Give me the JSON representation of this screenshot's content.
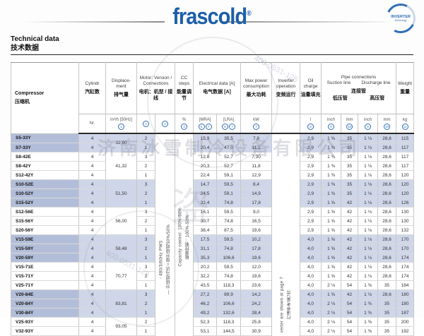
{
  "brand": {
    "logo": "frascold",
    "registered": "®",
    "badge_line1": "INVERTER",
    "badge_line2": "technology"
  },
  "title": {
    "en": "Technical data",
    "zh": "技术数据"
  },
  "header": {
    "compressor": {
      "en": "Compressor",
      "zh": "压缩机"
    },
    "cylinder": {
      "en": "Cylindr",
      "zh": "汽缸数",
      "unit": "Nr."
    },
    "displacement": {
      "en1": "Displace-",
      "en2": "ment",
      "zh": "排气量",
      "unit": "m³/h [50Hz]",
      "fn": "1"
    },
    "motor": {
      "en": "Motor: Version / Connections",
      "zh": "电机：机型 / 接线",
      "fn_a": "2",
      "fn_b": "3"
    },
    "cc": {
      "en": "CC steps",
      "zh": "能量调节",
      "unit": "%",
      "fn": "4"
    },
    "electrical": {
      "en": "Electrical data [A]",
      "zh": "电气数据 [A]",
      "mra": "[MRA]",
      "mra_fn_a": "6",
      "mra_fn_b": "7",
      "lra": "[LRA]",
      "lra_fn_a": "6",
      "lra_fn_b": "7"
    },
    "power": {
      "en": "Max power consumption",
      "zh": "最大功耗",
      "unit": "kW",
      "fn": "7"
    },
    "inverter": {
      "en": "Inverter operation",
      "zh": "变频运行"
    },
    "oil": {
      "en": "Oil charge",
      "zh": "油量填充",
      "unit": "l",
      "fn": "8"
    },
    "pipes": {
      "en": "Pipe connections",
      "zh": "连接管",
      "suction_en": "Suction line",
      "suction_zh": "低压管",
      "discharge_en": "Discharge line",
      "discharge_zh": "高压管",
      "u_s_in": "inch",
      "u_s_mm": "mm",
      "u_d_in": "inch",
      "u_d_mm": "mm",
      "fn_s_in": "9",
      "fn_s_mm": "10",
      "fn_d_in": "9",
      "fn_d_mm": "10"
    },
    "weight": {
      "en": "Weight",
      "zh": "重量",
      "unit": "kg",
      "fn": "11"
    }
  },
  "notes": {
    "motor_line1": "- 480/3/60Hz    PWS",
    "motor_line2": "— 分绕组马达＝部分绕组50%/50%",
    "cc_line1": "Capacity control: 100%-50%",
    "cc_line2": "能量控制：100%-50%",
    "inverter_line1": "verter are shown at page 7",
    "inverter_line2": "行请参考第7页"
  },
  "watermarks": {
    "company": "济南冰雪制冷设备有限公司",
    "phone": "400-0531-128",
    "char": "盗"
  },
  "groups": [
    {
      "band": "blue",
      "disp": "32,80",
      "rows": [
        {
          "name": "S5-33Y",
          "cyl": "4",
          "ver": "2",
          "mra": "15,9",
          "lra": "35,5",
          "kw": "7,8",
          "oil": "2,9",
          "s_in": "1 ⅜",
          "s_mm": "35",
          "d_in": "1 ⅛",
          "d_mm": "28,6",
          "kg": "115"
        },
        {
          "name": "S7-33Y",
          "cyl": "4",
          "ver": "1",
          "mra": "20,4",
          "lra": "47,0",
          "kw": "11,1",
          "oil": "2,9",
          "s_in": "1 ⅜",
          "s_mm": "35",
          "d_in": "1 ⅛",
          "d_mm": "28,6",
          "kg": "117"
        }
      ]
    },
    {
      "band": "white",
      "disp": "41,32",
      "rows": [
        {
          "name": "S8-42E",
          "cyl": "4",
          "ver": "3",
          "mra": "12,8",
          "lra": "52,7",
          "kw": "7,30",
          "oil": "2,9",
          "s_in": "1 ⅜",
          "s_mm": "35",
          "d_in": "1 ⅛",
          "d_mm": "28,6",
          "kg": "117"
        },
        {
          "name": "S8-42Y",
          "cyl": "4",
          "ver": "2",
          "mra": "20,3",
          "lra": "52,7",
          "kw": "11,8",
          "oil": "2,9",
          "s_in": "1 ⅜",
          "s_mm": "35",
          "d_in": "1 ⅛",
          "d_mm": "28,6",
          "kg": "117"
        },
        {
          "name": "S12-42Y",
          "cyl": "4",
          "ver": "1",
          "mra": "22,4",
          "lra": "59,1",
          "kw": "12,9",
          "oil": "2,9",
          "s_in": "1 ⅜",
          "s_mm": "35",
          "d_in": "1 ⅛",
          "d_mm": "28,6",
          "kg": "120"
        }
      ]
    },
    {
      "band": "blue",
      "disp": "51,50",
      "rows": [
        {
          "name": "S10-52E",
          "cyl": "4",
          "ver": "3",
          "mra": "14,7",
          "lra": "59,5",
          "kw": "8,4",
          "oil": "2,9",
          "s_in": "1 ⅜",
          "s_mm": "35",
          "d_in": "1 ⅛",
          "d_mm": "28,6",
          "kg": "120"
        },
        {
          "name": "S10-52Y",
          "cyl": "4",
          "ver": "2",
          "mra": "24,5",
          "lra": "59,1",
          "kw": "14,9",
          "oil": "2,9",
          "s_in": "1 ⅜",
          "s_mm": "35",
          "d_in": "1 ⅛",
          "d_mm": "28,6",
          "kg": "120"
        },
        {
          "name": "S15-52Y",
          "cyl": "4",
          "ver": "1",
          "mra": "32,4",
          "lra": "74,8",
          "kw": "17,8",
          "oil": "2,9",
          "s_in": "1 ⅝",
          "s_mm": "42",
          "d_in": "1 ⅛",
          "d_mm": "28,6",
          "kg": "126"
        }
      ]
    },
    {
      "band": "white",
      "disp": "56,00",
      "rows": [
        {
          "name": "S12-56E",
          "cyl": "4",
          "ver": "3",
          "mra": "16,1",
          "lra": "59,5",
          "kw": "9,0",
          "oil": "2,9",
          "s_in": "1 ⅝",
          "s_mm": "42",
          "d_in": "1 ⅛",
          "d_mm": "28,6",
          "kg": "130"
        },
        {
          "name": "S15-56Y",
          "cyl": "4",
          "ver": "2",
          "mra": "30,7",
          "lra": "74,8",
          "kw": "16,5",
          "oil": "2,9",
          "s_in": "1 ⅝",
          "s_mm": "42",
          "d_in": "1 ⅛",
          "d_mm": "28,6",
          "kg": "130"
        },
        {
          "name": "S20-56Y",
          "cyl": "4",
          "ver": "1",
          "mra": "38,4",
          "lra": "87,5",
          "kw": "19,6",
          "oil": "2,9",
          "s_in": "1 ⅝",
          "s_mm": "42",
          "d_in": "1 ⅛",
          "d_mm": "28,6",
          "kg": "132"
        }
      ]
    },
    {
      "band": "blue",
      "disp": "58,48",
      "rows": [
        {
          "name": "V15-59E",
          "cyl": "4",
          "ver": "3",
          "mra": "17,5",
          "lra": "59,5",
          "kw": "10,2",
          "oil": "4,0",
          "s_in": "1 ⅝",
          "s_mm": "42",
          "d_in": "1 ⅛",
          "d_mm": "28,6",
          "kg": "170"
        },
        {
          "name": "V15-59Y",
          "cyl": "4",
          "ver": "2",
          "mra": "31,1",
          "lra": "74,8",
          "kw": "17,8",
          "oil": "4,0",
          "s_in": "1 ⅝",
          "s_mm": "42",
          "d_in": "1 ⅛",
          "d_mm": "28,6",
          "kg": "170"
        },
        {
          "name": "V20-59Y",
          "cyl": "4",
          "ver": "1",
          "mra": "35,3",
          "lra": "106,6",
          "kw": "19,6",
          "oil": "4,0",
          "s_in": "1 ⅝",
          "s_mm": "42",
          "d_in": "1 ⅛",
          "d_mm": "28,6",
          "kg": "174"
        }
      ]
    },
    {
      "band": "white",
      "disp": "70,77",
      "rows": [
        {
          "name": "V15-71E",
          "cyl": "4",
          "ver": "3",
          "mra": "20,2",
          "lra": "59,5",
          "kw": "12,0",
          "oil": "4,0",
          "s_in": "1 ⅝",
          "s_mm": "42",
          "d_in": "1 ⅛",
          "d_mm": "28,6",
          "kg": "174"
        },
        {
          "name": "V15-71Y",
          "cyl": "4",
          "ver": "2",
          "mra": "32,2",
          "lra": "74,8",
          "kw": "19,6",
          "oil": "4,0",
          "s_in": "1 ⅝",
          "s_mm": "42",
          "d_in": "1 ⅛",
          "d_mm": "28,6",
          "kg": "174"
        },
        {
          "name": "V25-71Y",
          "cyl": "4",
          "ver": "1",
          "mra": "43,5",
          "lra": "118,3",
          "kw": "23,6",
          "oil": "4,0",
          "s_in": "2 ⅛",
          "s_mm": "54",
          "d_in": "1 ⅜",
          "d_mm": "35",
          "kg": "184"
        }
      ]
    },
    {
      "band": "blue",
      "disp": "83,81",
      "rows": [
        {
          "name": "V20-84E",
          "cyl": "4",
          "ver": "3",
          "mra": "27,2",
          "lra": "89,9",
          "kw": "14,2",
          "oil": "4,0",
          "s_in": "1 ⅝",
          "s_mm": "42",
          "d_in": "1 ⅛",
          "d_mm": "28,6",
          "kg": "180"
        },
        {
          "name": "V20-84Y",
          "cyl": "4",
          "ver": "2",
          "mra": "46,2",
          "lra": "106,6",
          "kw": "24,2",
          "oil": "4,0",
          "s_in": "2 ⅛",
          "s_mm": "54",
          "d_in": "1 ⅜",
          "d_mm": "35",
          "kg": "180"
        },
        {
          "name": "V30-84Y",
          "cyl": "4",
          "ver": "1",
          "mra": "49,2",
          "lra": "132,6",
          "kw": "28,4",
          "oil": "4,0",
          "s_in": "2 ⅛",
          "s_mm": "54",
          "d_in": "1 ⅜",
          "d_mm": "35",
          "kg": "187"
        }
      ]
    },
    {
      "band": "white",
      "disp": "93,05",
      "rows": [
        {
          "name": "V25-93Y",
          "cyl": "4",
          "ver": "2",
          "mra": "52,3",
          "lra": "118,3",
          "kw": "25,8",
          "oil": "4,0",
          "s_in": "2 ⅛",
          "s_mm": "54",
          "d_in": "1 ⅜",
          "d_mm": "35",
          "kg": "200"
        },
        {
          "name": "V32-93Y",
          "cyl": "4",
          "ver": "1",
          "mra": "53,1",
          "lra": "144,5",
          "kw": "30,9",
          "oil": "4,0",
          "s_in": "2 ⅛",
          "s_mm": "54",
          "d_in": "1 ⅜",
          "d_mm": "35",
          "kg": "192"
        }
      ]
    }
  ]
}
